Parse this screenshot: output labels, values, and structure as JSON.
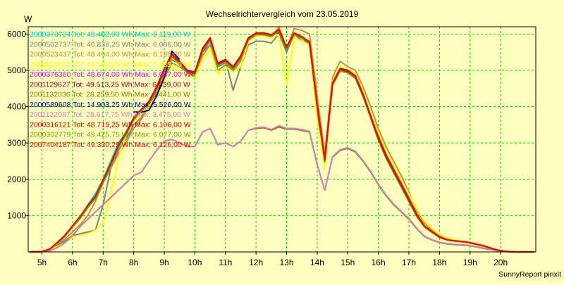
{
  "chart_data": {
    "type": "line",
    "title": "Wechselrichtervergleich vom 23.05.2019",
    "ylabel": "W",
    "xlabel": "",
    "credit": "SunnyReport pinxit",
    "grid": true,
    "legend_position": "top-left",
    "xlim": [
      4.55,
      21.15
    ],
    "ylim": [
      0,
      6200
    ],
    "x_ticks": [
      5,
      6,
      7,
      8,
      9,
      10,
      11,
      12,
      13,
      14,
      15,
      16,
      17,
      18,
      19,
      20
    ],
    "x_tick_labels": [
      "5h",
      "6h",
      "7h",
      "8h",
      "9h",
      "10h",
      "11h",
      "12h",
      "13h",
      "14h",
      "15h",
      "16h",
      "17h",
      "18h",
      "19h",
      "20h"
    ],
    "y_ticks": [
      1000,
      2000,
      3000,
      4000,
      5000,
      6000
    ],
    "y_tick_labels": [
      "1000",
      "2000",
      "3000",
      "4000",
      "5000",
      "6000"
    ],
    "x": [
      4.6,
      5.0,
      5.25,
      5.5,
      5.75,
      6.0,
      6.25,
      6.5,
      6.75,
      7.0,
      7.25,
      7.5,
      7.75,
      8.0,
      8.25,
      8.5,
      8.75,
      9.0,
      9.25,
      9.5,
      9.75,
      10.0,
      10.25,
      10.5,
      10.75,
      11.0,
      11.25,
      11.5,
      11.75,
      12.0,
      12.25,
      12.5,
      12.75,
      13.0,
      13.25,
      13.5,
      13.75,
      14.0,
      14.25,
      14.5,
      14.75,
      15.0,
      15.25,
      15.5,
      15.75,
      16.0,
      16.25,
      16.5,
      16.75,
      17.0,
      17.25,
      17.5,
      17.75,
      18.0,
      18.25,
      18.5,
      18.75,
      19.0,
      19.25,
      19.5,
      19.75,
      20.0,
      20.25,
      20.5,
      21.1
    ],
    "series": [
      {
        "name": "2000373724 Tot: 48.482,00 Wh Max: 6.119,00 W",
        "color": "#00c8c8",
        "values": [
          0,
          10,
          80,
          250,
          450,
          700,
          950,
          1300,
          1600,
          2000,
          2500,
          3000,
          3300,
          3700,
          3900,
          4100,
          4500,
          5000,
          5400,
          5200,
          4950,
          4900,
          5500,
          5800,
          5100,
          5200,
          5000,
          5300,
          5800,
          6000,
          6000,
          5950,
          6119,
          5500,
          6000,
          5900,
          5800,
          4000,
          2500,
          4600,
          5000,
          4950,
          4800,
          4300,
          3700,
          3100,
          2600,
          2200,
          1800,
          1400,
          1000,
          700,
          550,
          400,
          330,
          300,
          280,
          250,
          200,
          150,
          80,
          30,
          10,
          0,
          0
        ]
      },
      {
        "name": "2000502737 Tot: 46.838,25 Wh Max: 6.006,00 W",
        "color": "#808080",
        "values": [
          0,
          10,
          60,
          180,
          300,
          450,
          500,
          550,
          600,
          1300,
          2300,
          2800,
          3100,
          3500,
          3700,
          4100,
          4400,
          4800,
          5200,
          5100,
          4950,
          4800,
          5500,
          5700,
          5100,
          5300,
          4450,
          5100,
          5700,
          5800,
          5800,
          5750,
          6006,
          5500,
          6000,
          5800,
          5750,
          3800,
          2600,
          4600,
          5100,
          4950,
          4850,
          4300,
          3800,
          3200,
          2700,
          2300,
          1900,
          1500,
          1050,
          700,
          550,
          420,
          340,
          300,
          280,
          250,
          200,
          150,
          80,
          30,
          10,
          0,
          0
        ]
      },
      {
        "name": "2000523437 Tot: 48.494,00 Wh Max: 6.195,00 W",
        "color": "#c09040",
        "values": [
          0,
          10,
          60,
          200,
          350,
          550,
          750,
          1000,
          1400,
          1900,
          2300,
          2700,
          3000,
          3400,
          3650,
          4000,
          4400,
          4900,
          5300,
          5150,
          4950,
          4850,
          5400,
          5700,
          5000,
          5150,
          4950,
          5250,
          5800,
          5950,
          5950,
          5900,
          6195,
          5600,
          6150,
          6100,
          6000,
          4300,
          2700,
          4800,
          5250,
          5100,
          5000,
          4550,
          4000,
          3400,
          2900,
          2500,
          2100,
          1650,
          1150,
          800,
          600,
          450,
          360,
          310,
          290,
          260,
          210,
          160,
          90,
          35,
          10,
          0,
          0
        ]
      },
      {
        "name": "2000529602 Tot: 49.592,25 Wh Max: 5.985,00 W",
        "color": "#ffff00",
        "values": [
          0,
          10,
          50,
          150,
          250,
          400,
          450,
          500,
          600,
          800,
          1600,
          2600,
          3200,
          3600,
          3800,
          4000,
          4300,
          4700,
          5100,
          4950,
          4850,
          4800,
          5300,
          5600,
          4900,
          5100,
          4950,
          5100,
          5800,
          5950,
          5950,
          5900,
          5985,
          4600,
          5900,
          5800,
          5700,
          3600,
          2300,
          4700,
          5100,
          5000,
          4900,
          4400,
          3800,
          3300,
          2800,
          2400,
          2000,
          1600,
          1200,
          850,
          650,
          480,
          380,
          330,
          300,
          270,
          220,
          160,
          90,
          35,
          10,
          0,
          0
        ]
      },
      {
        "name": "2000376360 Tot: 48.674,00 Wh Max: 6.047,00 W",
        "color": "#e000e0",
        "values": [
          0,
          10,
          80,
          250,
          450,
          700,
          950,
          1250,
          1500,
          1950,
          2400,
          2900,
          3250,
          3650,
          3900,
          4100,
          4500,
          5000,
          5400,
          5200,
          4950,
          4900,
          5550,
          5850,
          5150,
          5250,
          5050,
          5350,
          5850,
          6000,
          6000,
          5950,
          6047,
          5600,
          6000,
          5900,
          5750,
          4000,
          2500,
          4600,
          5000,
          4950,
          4800,
          4300,
          3700,
          3100,
          2600,
          2200,
          1800,
          1400,
          1000,
          700,
          550,
          400,
          330,
          300,
          280,
          250,
          200,
          150,
          80,
          30,
          10,
          0,
          0
        ]
      },
      {
        "name": "2001129627 Tot: 49.513,25 Wh Max: 6.039,00 W",
        "color": "#a00030",
        "values": [
          0,
          10,
          80,
          250,
          450,
          700,
          950,
          1250,
          1500,
          1950,
          2400,
          2900,
          3250,
          3650,
          3900,
          4150,
          4550,
          5050,
          5450,
          5250,
          5000,
          4950,
          5600,
          5900,
          5200,
          5300,
          5100,
          5400,
          5900,
          6020,
          6030,
          5980,
          6039,
          5650,
          6020,
          5920,
          5780,
          4050,
          2550,
          4650,
          5050,
          5000,
          4850,
          4350,
          3750,
          3150,
          2650,
          2250,
          1850,
          1450,
          1050,
          720,
          560,
          410,
          340,
          305,
          285,
          255,
          205,
          155,
          85,
          32,
          10,
          0,
          0
        ]
      },
      {
        "name": "2001132036 Tot: 28.259,50 Wh Max: 3.441,00 W",
        "color": "#808000",
        "values": [
          0,
          5,
          30,
          120,
          250,
          450,
          700,
          900,
          1100,
          1300,
          1500,
          1700,
          1900,
          2100,
          2200,
          2500,
          2800,
          3050,
          3100,
          3000,
          2900,
          2900,
          3300,
          3400,
          2950,
          3000,
          2900,
          3050,
          3350,
          3400,
          3420,
          3350,
          3441,
          3380,
          3380,
          3350,
          3300,
          2400,
          1700,
          2600,
          2800,
          2850,
          2750,
          2500,
          2200,
          1850,
          1550,
          1300,
          1100,
          900,
          650,
          430,
          330,
          260,
          220,
          200,
          190,
          170,
          130,
          90,
          50,
          20,
          5,
          0,
          0
        ]
      },
      {
        "name": "2000589608 Tot: 14.903,25 Wh Max: 5.526,00 W",
        "color": "#000080",
        "values": [
          null,
          null,
          null,
          null,
          null,
          null,
          null,
          null,
          null,
          null,
          null,
          null,
          null,
          3850,
          3850,
          3900,
          4300,
          4800,
          5526,
          5300,
          null,
          null,
          null,
          null,
          null,
          null,
          null,
          null,
          null,
          null,
          null,
          null,
          null,
          null,
          null,
          null,
          null,
          null,
          null,
          null,
          null,
          null,
          null,
          null,
          null,
          null,
          null,
          null,
          null,
          null,
          null,
          null,
          null,
          null,
          null,
          null,
          null,
          null,
          null,
          null,
          null,
          null,
          null,
          null,
          null
        ]
      },
      {
        "name": "2001132087 Tot: 28.617,75 Wh Max: 3.475,00 W",
        "color": "#d080c0",
        "values": [
          0,
          5,
          30,
          120,
          250,
          450,
          700,
          900,
          1100,
          1300,
          1500,
          1700,
          1900,
          2100,
          2200,
          2500,
          2800,
          3050,
          3100,
          3000,
          2900,
          2900,
          3300,
          3400,
          2950,
          3000,
          2900,
          3050,
          3350,
          3420,
          3440,
          3370,
          3475,
          3400,
          3400,
          3370,
          3320,
          2420,
          1700,
          2620,
          2820,
          2870,
          2770,
          2520,
          2220,
          1870,
          1570,
          1320,
          1120,
          920,
          660,
          440,
          340,
          270,
          230,
          210,
          200,
          180,
          140,
          100,
          55,
          22,
          5,
          0,
          0
        ]
      },
      {
        "name": "2000316121 Tot: 48.719,25 Wh Max: 6.106,00 W",
        "color": "#c00000",
        "values": [
          0,
          10,
          80,
          250,
          450,
          700,
          950,
          1250,
          1500,
          1950,
          2400,
          2900,
          3250,
          3650,
          3900,
          4100,
          4500,
          5000,
          5400,
          5200,
          4950,
          4900,
          5550,
          5850,
          5150,
          5250,
          5050,
          5350,
          5850,
          6000,
          6000,
          5950,
          6106,
          5600,
          6000,
          5900,
          5750,
          4000,
          2500,
          4600,
          5000,
          4950,
          4800,
          4300,
          3700,
          3100,
          2600,
          2200,
          1800,
          1400,
          1000,
          700,
          550,
          400,
          330,
          300,
          280,
          250,
          200,
          150,
          80,
          30,
          10,
          0,
          0
        ]
      },
      {
        "name": "2000302779 Tot: 49.425,75 Wh Max: 6.077,00 W",
        "color": "#70a000",
        "values": [
          0,
          10,
          70,
          230,
          420,
          680,
          920,
          1220,
          1480,
          1930,
          2380,
          2880,
          3230,
          3630,
          3880,
          4080,
          4480,
          4980,
          5380,
          5180,
          4930,
          4880,
          5530,
          5830,
          5130,
          5230,
          5030,
          5330,
          5830,
          5980,
          5980,
          5930,
          6077,
          5580,
          5980,
          5880,
          5730,
          3980,
          2480,
          4580,
          4980,
          4930,
          4780,
          4280,
          3680,
          3080,
          2580,
          2180,
          1780,
          1380,
          980,
          690,
          540,
          395,
          325,
          295,
          275,
          245,
          195,
          145,
          78,
          28,
          8,
          0,
          0
        ]
      },
      {
        "name": "2007404187 Tot: 49.330,25 Wh Max: 6.126,00 W",
        "color": "#ff0000",
        "values": [
          0,
          10,
          80,
          260,
          460,
          720,
          980,
          1280,
          1530,
          1980,
          2430,
          2930,
          3280,
          3680,
          3930,
          4130,
          4530,
          5030,
          5430,
          5230,
          4980,
          4930,
          5580,
          5880,
          5180,
          5280,
          5080,
          5380,
          5880,
          6030,
          6030,
          5980,
          6126,
          5630,
          6030,
          5930,
          5780,
          4030,
          2530,
          4630,
          5030,
          4980,
          4830,
          4330,
          3730,
          3130,
          2630,
          2230,
          1830,
          1430,
          1030,
          720,
          560,
          410,
          340,
          305,
          285,
          255,
          205,
          155,
          85,
          32,
          10,
          0,
          0
        ]
      }
    ]
  }
}
